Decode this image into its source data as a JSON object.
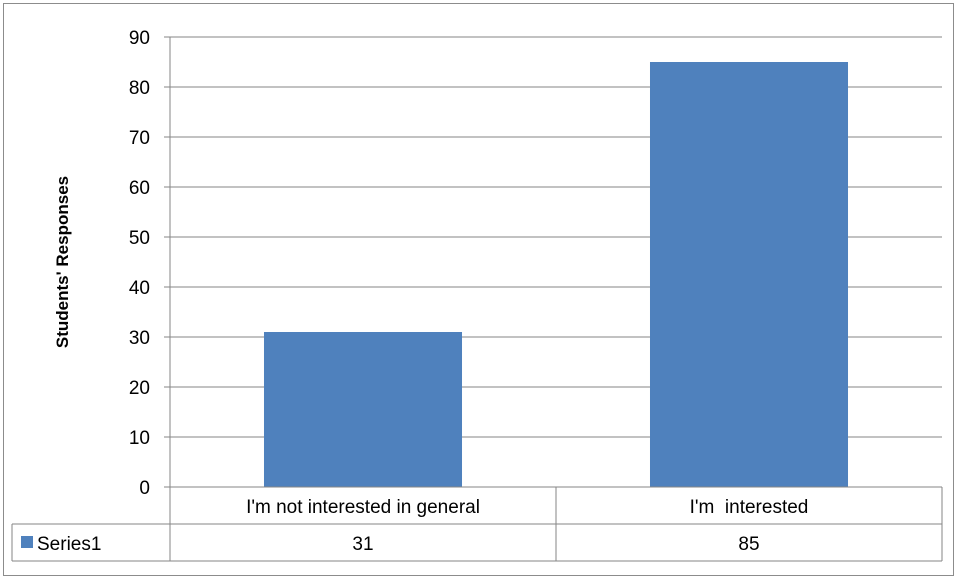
{
  "chart_data": {
    "type": "bar",
    "title": "",
    "xlabel": "",
    "ylabel": "Students' Responses",
    "categories": [
      "I'm not interested in general",
      "I'm  interested"
    ],
    "series": [
      {
        "name": "Series1",
        "values": [
          31,
          85
        ],
        "color": "#4F81BD"
      }
    ],
    "ylim": [
      0,
      90
    ],
    "y_ticks": [
      "0",
      "10",
      "20",
      "30",
      "40",
      "50",
      "60",
      "70",
      "80",
      "90"
    ],
    "grid": true,
    "legend_placement": "data-table-left",
    "data_table": true
  }
}
